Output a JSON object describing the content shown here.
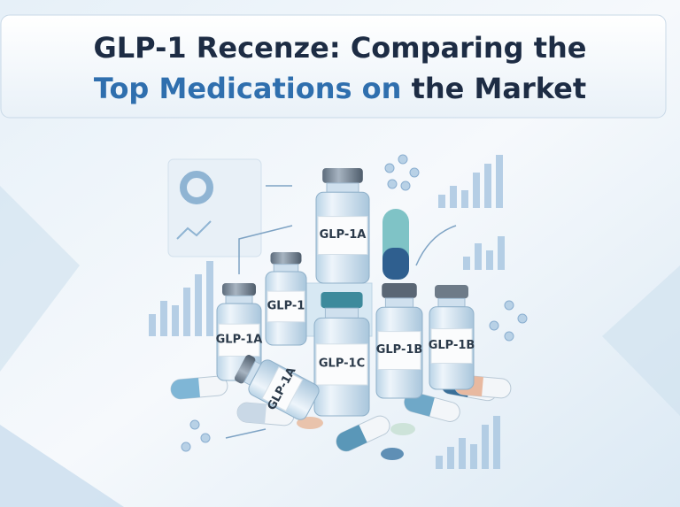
{
  "title": {
    "line1": "GLP-1 Recenze: Comparing the",
    "line2_highlight": "Top Medications on",
    "line2_rest": "the Market"
  },
  "vials": [
    "GLP-1A",
    "GLP-1",
    "GLP-1A",
    "GLP-1B",
    "GLP-1B",
    "GLP-1C",
    "GLP-1A"
  ]
}
